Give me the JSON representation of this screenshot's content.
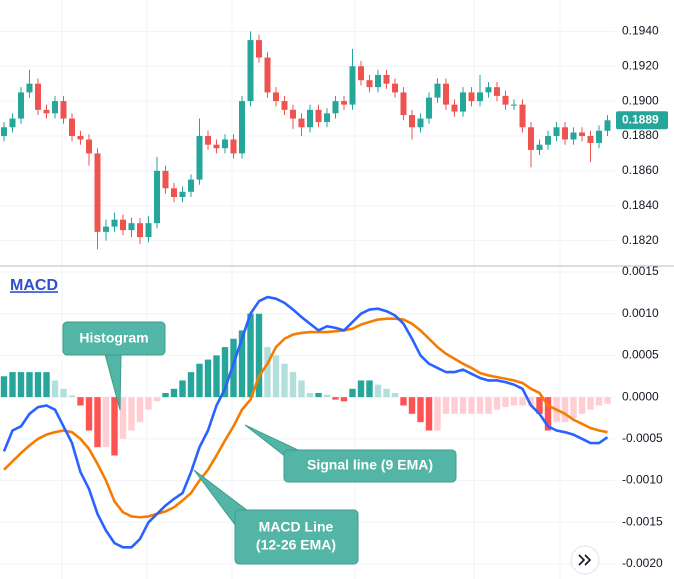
{
  "chart_data": [
    {
      "type": "candlestick",
      "up_color": "#26a69a",
      "down_color": "#ef5350",
      "open": [
        0.188,
        0.1885,
        0.189,
        0.1905,
        0.191,
        0.1895,
        0.1893,
        0.19,
        0.189,
        0.188,
        0.1878,
        0.187,
        0.1825,
        0.1828,
        0.1832,
        0.1826,
        0.183,
        0.1822,
        0.183,
        0.186,
        0.185,
        0.1845,
        0.1848,
        0.1855,
        0.188,
        0.1875,
        0.1873,
        0.1878,
        0.187,
        0.19,
        0.1935,
        0.1925,
        0.1905,
        0.19,
        0.1895,
        0.189,
        0.1885,
        0.1895,
        0.1888,
        0.1893,
        0.19,
        0.1898,
        0.192,
        0.1912,
        0.1908,
        0.1915,
        0.191,
        0.1905,
        0.1892,
        0.1885,
        0.189,
        0.1902,
        0.191,
        0.1898,
        0.1894,
        0.1905,
        0.19,
        0.1905,
        0.1908,
        0.1903,
        0.1898,
        0.1898,
        0.1885,
        0.1872,
        0.1875,
        0.188,
        0.1885,
        0.1878,
        0.1882,
        0.188,
        0.1876,
        0.1883
      ],
      "high": [
        0.1888,
        0.1893,
        0.1908,
        0.1918,
        0.1913,
        0.1898,
        0.1903,
        0.1903,
        0.1893,
        0.1883,
        0.1881,
        0.1873,
        0.1832,
        0.1836,
        0.1835,
        0.1833,
        0.1833,
        0.1834,
        0.1868,
        0.1863,
        0.1853,
        0.1851,
        0.1858,
        0.189,
        0.1883,
        0.1878,
        0.1881,
        0.1881,
        0.1903,
        0.194,
        0.1938,
        0.1928,
        0.1908,
        0.1903,
        0.1898,
        0.1893,
        0.1898,
        0.1898,
        0.1896,
        0.1903,
        0.1903,
        0.193,
        0.1923,
        0.1915,
        0.1918,
        0.1918,
        0.1913,
        0.1908,
        0.1895,
        0.1893,
        0.1905,
        0.1913,
        0.1913,
        0.1901,
        0.1908,
        0.1908,
        0.1915,
        0.1911,
        0.1911,
        0.1906,
        0.1901,
        0.1901,
        0.1888,
        0.1878,
        0.1883,
        0.1888,
        0.1888,
        0.1885,
        0.1885,
        0.1883,
        0.1886,
        0.1892
      ],
      "low": [
        0.1877,
        0.1882,
        0.1887,
        0.1902,
        0.1892,
        0.189,
        0.189,
        0.1887,
        0.1877,
        0.1875,
        0.1863,
        0.1815,
        0.182,
        0.1825,
        0.1823,
        0.1822,
        0.1818,
        0.1819,
        0.1827,
        0.1847,
        0.1842,
        0.1842,
        0.1845,
        0.1852,
        0.1872,
        0.187,
        0.187,
        0.1867,
        0.1867,
        0.1897,
        0.1922,
        0.1902,
        0.1897,
        0.1892,
        0.1884,
        0.188,
        0.1882,
        0.1885,
        0.1885,
        0.189,
        0.1895,
        0.1895,
        0.1909,
        0.1905,
        0.1905,
        0.1907,
        0.1902,
        0.1889,
        0.1878,
        0.1882,
        0.1887,
        0.1899,
        0.1895,
        0.1891,
        0.1891,
        0.1897,
        0.1897,
        0.1902,
        0.19,
        0.1895,
        0.1895,
        0.1882,
        0.1862,
        0.1869,
        0.1872,
        0.1877,
        0.1875,
        0.1875,
        0.1877,
        0.1865,
        0.1873,
        0.188
      ],
      "close": [
        0.1885,
        0.189,
        0.1905,
        0.191,
        0.1895,
        0.1893,
        0.19,
        0.189,
        0.188,
        0.1878,
        0.187,
        0.1825,
        0.1828,
        0.1832,
        0.1826,
        0.183,
        0.1822,
        0.183,
        0.186,
        0.185,
        0.1845,
        0.1848,
        0.1855,
        0.188,
        0.1875,
        0.1873,
        0.1878,
        0.187,
        0.19,
        0.1935,
        0.1925,
        0.1905,
        0.19,
        0.1895,
        0.189,
        0.1885,
        0.1895,
        0.1888,
        0.1893,
        0.19,
        0.1898,
        0.192,
        0.1912,
        0.1908,
        0.1915,
        0.191,
        0.1905,
        0.1892,
        0.1885,
        0.189,
        0.1902,
        0.191,
        0.1898,
        0.1894,
        0.1905,
        0.19,
        0.1905,
        0.1908,
        0.1903,
        0.1898,
        0.1898,
        0.1885,
        0.1872,
        0.1875,
        0.188,
        0.1885,
        0.1878,
        0.1882,
        0.188,
        0.1876,
        0.1883,
        0.1889
      ],
      "ylim": [
        0.1806,
        0.1958
      ],
      "yticks": [
        {
          "value": 0.182,
          "label": "0.1820"
        },
        {
          "value": 0.184,
          "label": "0.1840"
        },
        {
          "value": 0.186,
          "label": "0.1860"
        },
        {
          "value": 0.188,
          "label": "0.1880"
        },
        {
          "value": 0.19,
          "label": "0.1900"
        },
        {
          "value": 0.192,
          "label": "0.1920"
        },
        {
          "value": 0.194,
          "label": "0.1940"
        }
      ],
      "last_price": {
        "value": 0.1889,
        "label": "0.1889"
      },
      "grid": true
    },
    {
      "type": "macd",
      "title": "MACD",
      "histogram": [
        0.00025,
        0.0003,
        0.0003,
        0.0003,
        0.0003,
        0.0003,
        0.0002,
        0.0001,
        2e-05,
        -0.0001,
        -0.0004,
        -0.0006,
        -0.0006,
        -0.0007,
        -0.0005,
        -0.0004,
        -0.0003,
        -0.00015,
        -5e-05,
        5e-05,
        0.0001,
        0.0002,
        0.0003,
        0.0004,
        0.00045,
        0.0005,
        0.0006,
        0.0007,
        0.0008,
        0.001,
        0.001,
        0.0006,
        0.0005,
        0.0004,
        0.0003,
        0.0002,
        5e-05,
        5e-05,
        3e-05,
        -3e-05,
        -5e-05,
        0.0001,
        0.0002,
        0.0002,
        0.00015,
        0.0001,
        5e-05,
        -0.0001,
        -0.0002,
        -0.0003,
        -0.0004,
        -0.0004,
        -0.0002,
        -0.0002,
        -0.0002,
        -0.0002,
        -0.0002,
        -0.0002,
        -0.00015,
        -0.00012,
        -0.0001,
        -0.0001,
        -0.0001,
        -0.0002,
        -0.0004,
        -0.0003,
        -0.0003,
        -0.00025,
        -0.0002,
        -0.00015,
        -0.0001,
        -8e-05
      ],
      "histogram_colors": {
        "up_grow": "#26a69a",
        "up_fall": "#b2dfdb",
        "down_grow": "#ff5252",
        "down_fall": "#ffcdd2"
      },
      "macd": [
        -0.00065,
        -0.0004,
        -0.00035,
        -0.0002,
        -0.00012,
        -0.0001,
        -0.00015,
        -0.00035,
        -0.00055,
        -0.0009,
        -0.0011,
        -0.0014,
        -0.0016,
        -0.00175,
        -0.0018,
        -0.0018,
        -0.0017,
        -0.0015,
        -0.0014,
        -0.0013,
        -0.00122,
        -0.00115,
        -0.0009,
        -0.0006,
        -0.0004,
        -0.0001,
        0.0001,
        0.0004,
        0.0007,
        0.001,
        0.00115,
        0.0012,
        0.00118,
        0.00113,
        0.00105,
        0.00096,
        0.00088,
        0.0008,
        0.00085,
        0.00083,
        0.0008,
        0.0009,
        0.001,
        0.00105,
        0.00106,
        0.00103,
        0.00098,
        0.00088,
        0.0007,
        0.0005,
        0.0004,
        0.00035,
        0.0003,
        0.0003,
        0.00033,
        0.00028,
        0.00023,
        0.0002,
        0.0002,
        0.00018,
        0.00015,
        0.0001,
        -0.0001,
        -0.0002,
        -0.00035,
        -0.0004,
        -0.00042,
        -0.00045,
        -0.0005,
        -0.00055,
        -0.00055,
        -0.00048
      ],
      "macd_color": "#2962ff",
      "signal": [
        -0.00087,
        -0.00077,
        -0.00067,
        -0.00058,
        -0.0005,
        -0.00045,
        -0.00042,
        -0.0004,
        -0.00042,
        -0.0005,
        -0.00062,
        -0.0008,
        -0.001,
        -0.00125,
        -0.00138,
        -0.00143,
        -0.00144,
        -0.00143,
        -0.0014,
        -0.00137,
        -0.00132,
        -0.00124,
        -0.00115,
        -0.001,
        -0.00087,
        -0.0007,
        -0.00052,
        -0.00035,
        -0.00015,
        -3e-05,
        0.00025,
        0.0004,
        0.0006,
        0.0007,
        0.00075,
        0.00077,
        0.00078,
        0.00078,
        0.00078,
        0.00079,
        0.0008,
        0.00082,
        0.00087,
        0.0009,
        0.00093,
        0.00094,
        0.00094,
        0.00093,
        0.00088,
        0.0008,
        0.0007,
        0.0006,
        0.00052,
        0.00046,
        0.0004,
        0.00035,
        0.00029,
        0.00026,
        0.00024,
        0.00022,
        0.0002,
        0.00017,
        0.0001,
        5e-05,
        -0.0001,
        -0.00015,
        -0.0002,
        -0.00027,
        -0.00032,
        -0.00037,
        -0.0004,
        -0.00042
      ],
      "signal_color": "#f57c00",
      "ylim": [
        -0.00218,
        0.00156
      ],
      "yticks": [
        {
          "value": -0.002,
          "label": "-0.0020"
        },
        -0.0015,
        {
          "value": -0.001,
          "label": "-0.0010"
        },
        -0.0005,
        {
          "value": 0.0,
          "label": "0.0000"
        },
        0.0005,
        {
          "value": 0.001,
          "label": "0.0010"
        },
        0.0015
      ],
      "annotations": [
        {
          "text": [
            "Histogram"
          ]
        },
        {
          "text": [
            "Signal line (9 EMA)"
          ]
        },
        {
          "text": [
            "MACD Line",
            "(12-26 EMA)"
          ]
        }
      ],
      "grid": true
    }
  ]
}
